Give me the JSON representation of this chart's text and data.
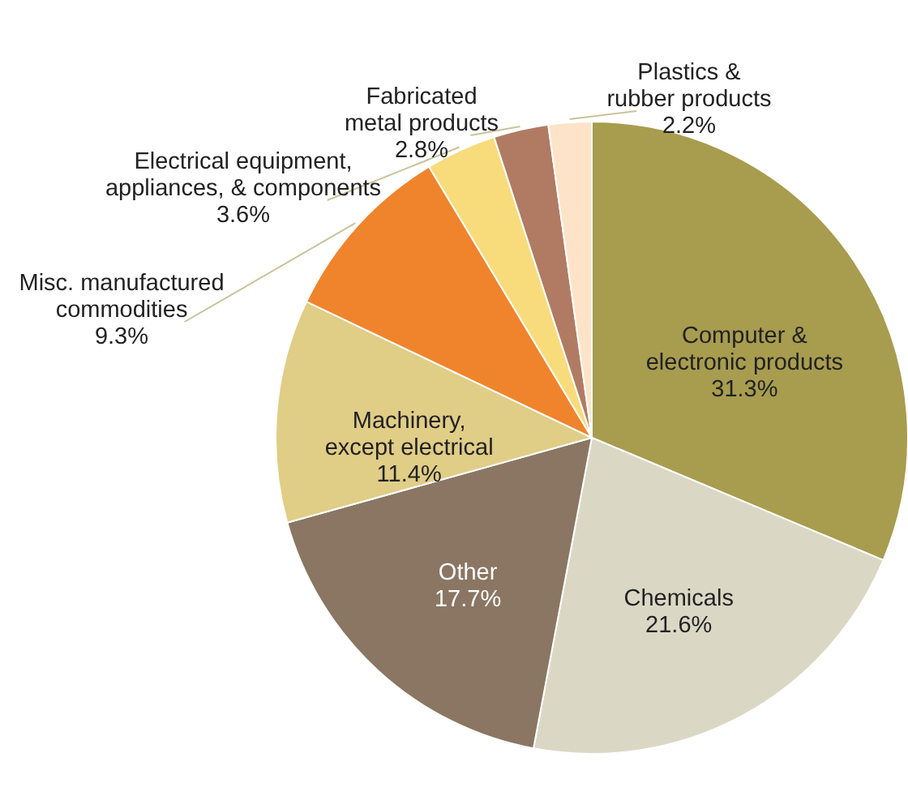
{
  "chart_data": {
    "type": "pie",
    "categories": [
      "Computer & electronic products",
      "Chemicals",
      "Other",
      "Machinery, except electrical",
      "Misc. manufactured commodities",
      "Electrical equipment, appliances, & components",
      "Fabricated metal products",
      "Plastics & rubber products"
    ],
    "values": [
      31.3,
      21.6,
      17.7,
      11.4,
      9.3,
      3.6,
      2.8,
      2.2
    ],
    "value_labels": [
      "31.3%",
      "21.6%",
      "17.7%",
      "11.4%",
      "9.3%",
      "3.6%",
      "2.8%",
      "2.2%"
    ],
    "colors": [
      "#a89c4f",
      "#dad8c5",
      "#8a7662",
      "#e0cd86",
      "#f0842c",
      "#f8dc7b",
      "#b17b63",
      "#fde4c8"
    ],
    "legend": false
  }
}
